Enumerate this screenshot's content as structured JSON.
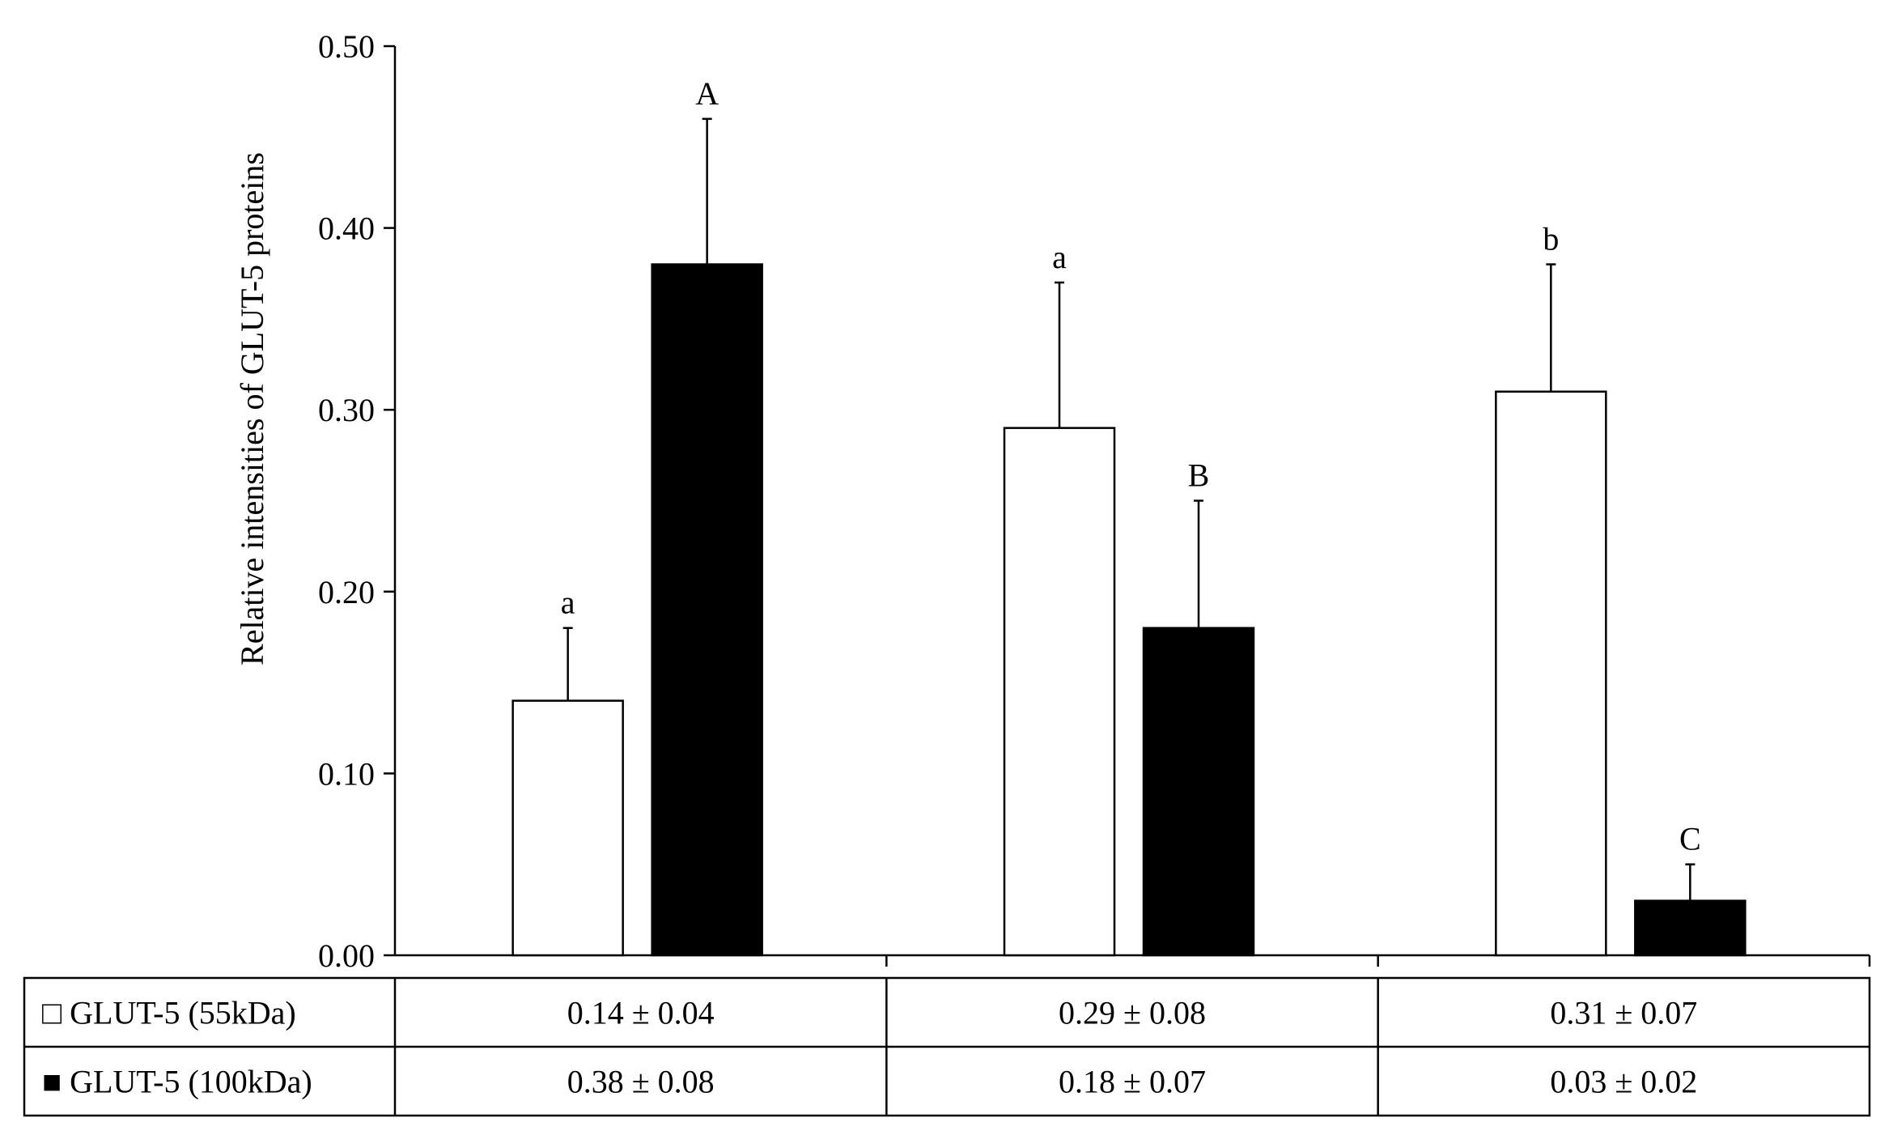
{
  "chart_data": {
    "type": "bar",
    "title": "",
    "xlabel": "",
    "ylabel": "Relative intensities of GLUT-5 proteins",
    "ylim": [
      0,
      0.5
    ],
    "yticks": [
      "0.00",
      "0.10",
      "0.20",
      "0.30",
      "0.40",
      "0.50"
    ],
    "ytick_values": [
      0,
      0.1,
      0.2,
      0.3,
      0.4,
      0.5
    ],
    "grid": false,
    "legend": "table-below",
    "categories": [
      "",
      "",
      ""
    ],
    "series": [
      {
        "name": "GLUT-5 (55kDa)",
        "marker": "□",
        "color": "#ffffff",
        "values": [
          0.14,
          0.29,
          0.31
        ],
        "errors": [
          0.04,
          0.08,
          0.07
        ],
        "significance": [
          "a",
          "a",
          "b"
        ],
        "table_values": [
          "0.14 ± 0.04",
          "0.29 ± 0.08",
          "0.31 ± 0.07"
        ]
      },
      {
        "name": "GLUT-5 (100kDa)",
        "marker": "■",
        "color": "#000000",
        "values": [
          0.38,
          0.18,
          0.03
        ],
        "errors": [
          0.08,
          0.07,
          0.02
        ],
        "significance": [
          "A",
          "B",
          "C"
        ],
        "table_values": [
          "0.38 ± 0.08",
          "0.18 ± 0.07",
          "0.03 ± 0.02"
        ]
      }
    ]
  }
}
